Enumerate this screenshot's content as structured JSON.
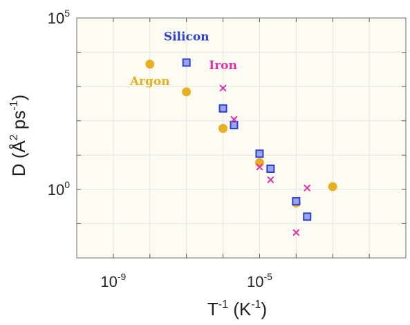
{
  "chart_data": {
    "type": "scatter",
    "xscale": "log",
    "yscale": "log",
    "xlim": [
      1e-10,
      0.1
    ],
    "ylim": [
      0.01,
      100000
    ],
    "grid": true,
    "background": "#fcfcf2",
    "xlabel": {
      "base": "T",
      "sup1": "-1",
      "mid": " (K",
      "sup2": "-1",
      "end": ")"
    },
    "ylabel": {
      "base": "D (Å",
      "sup1": "2",
      "mid": " ps",
      "sup2": "-1",
      "end": ")"
    },
    "x_ticks": [
      {
        "value": 1e-09,
        "base": "10",
        "exp": "-9"
      },
      {
        "value": 1e-05,
        "base": "10",
        "exp": "-5"
      }
    ],
    "y_ticks": [
      {
        "value": 1,
        "base": "10",
        "exp": "0"
      },
      {
        "value": 100000,
        "base": "10",
        "exp": "5"
      }
    ],
    "series": [
      {
        "name": "Argon",
        "marker": "circle",
        "color": "#e8b020",
        "points": [
          {
            "x": 1e-08,
            "y": 4500
          },
          {
            "x": 1e-07,
            "y": 700
          },
          {
            "x": 1e-06,
            "y": 60
          },
          {
            "x": 1e-05,
            "y": 6
          },
          {
            "x": 0.0001,
            "y": 0.4
          },
          {
            "x": 0.001,
            "y": 1.2
          }
        ]
      },
      {
        "name": "Silicon",
        "marker": "square",
        "color": "#2b3fd6",
        "fill": "#9aa5e8",
        "points": [
          {
            "x": 1e-07,
            "y": 5000
          },
          {
            "x": 1e-06,
            "y": 230
          },
          {
            "x": 2e-06,
            "y": 75
          },
          {
            "x": 1e-05,
            "y": 11
          },
          {
            "x": 2e-05,
            "y": 4
          },
          {
            "x": 0.0001,
            "y": 0.45
          },
          {
            "x": 0.0002,
            "y": 0.16
          }
        ]
      },
      {
        "name": "Iron",
        "marker": "x",
        "color": "#e030b0",
        "points": [
          {
            "x": 1e-06,
            "y": 900
          },
          {
            "x": 2e-06,
            "y": 110
          },
          {
            "x": 1e-05,
            "y": 4.5
          },
          {
            "x": 2e-05,
            "y": 1.9
          },
          {
            "x": 0.0001,
            "y": 0.055
          },
          {
            "x": 0.0002,
            "y": 1.1
          }
        ]
      }
    ],
    "labels": [
      {
        "text": "Silicon",
        "color": "#2b3fd6",
        "x": 1e-07,
        "y": 22000
      },
      {
        "text": "Iron",
        "color": "#e030b0",
        "x": 1e-06,
        "y": 3200
      },
      {
        "text": "Argon",
        "color": "#e8b020",
        "x": 1e-08,
        "y": 1100
      }
    ]
  }
}
